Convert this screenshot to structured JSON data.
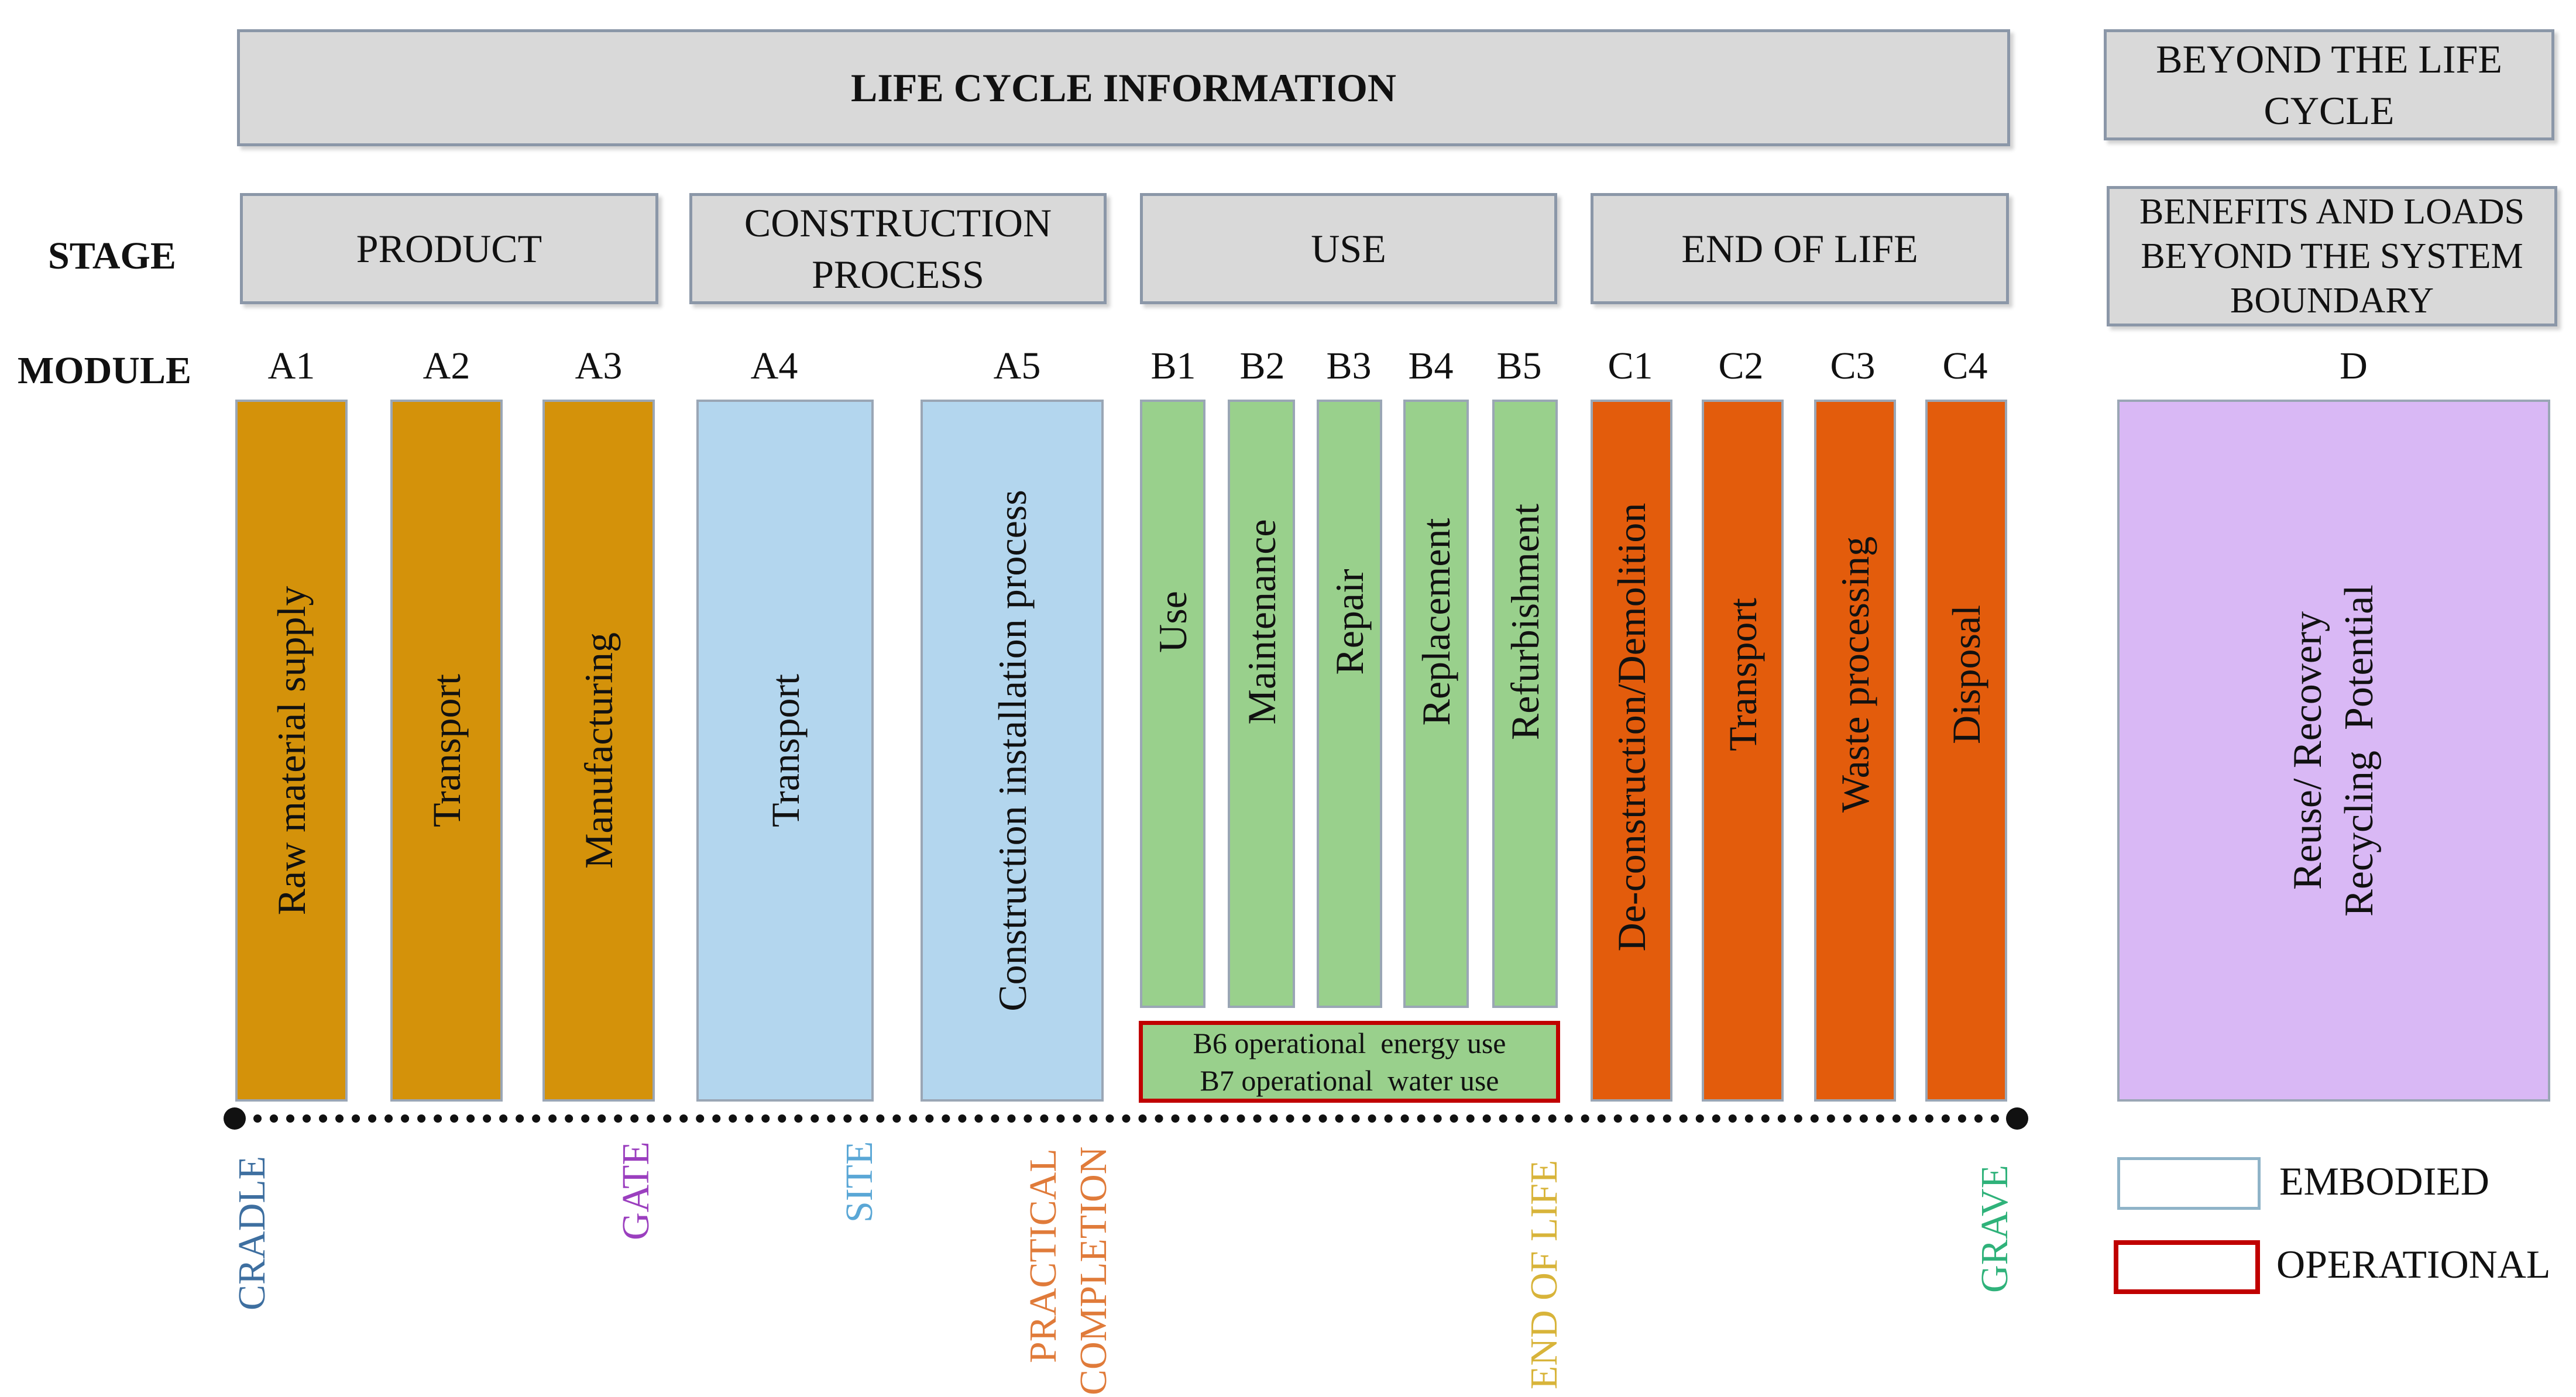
{
  "header": {
    "life_cycle": "LIFE CYCLE INFORMATION",
    "beyond_line1": "BEYOND THE LIFE",
    "beyond_line2": "CYCLE"
  },
  "row_labels": {
    "stage": "STAGE",
    "module": "MODULE"
  },
  "stages": {
    "product": "PRODUCT",
    "construction_line1": "CONSTRUCTION",
    "construction_line2": "PROCESS",
    "use": "USE",
    "end_of_life": "END OF LIFE",
    "benefits_line1": "BENEFITS AND LOADS",
    "benefits_line2": "BEYOND THE SYSTEM",
    "benefits_line3": "BOUNDARY"
  },
  "modules": [
    {
      "code": "A1",
      "name": "Raw material supply",
      "color": "#d4920a"
    },
    {
      "code": "A2",
      "name": "Transport",
      "color": "#d4920a"
    },
    {
      "code": "A3",
      "name": "Manufacturing",
      "color": "#d4920a"
    },
    {
      "code": "A4",
      "name": "Transport",
      "color": "#b3d6ee"
    },
    {
      "code": "A5",
      "name": "Construction installation process",
      "color": "#b3d6ee"
    },
    {
      "code": "B1",
      "name": "Use",
      "color": "#99d08c"
    },
    {
      "code": "B2",
      "name": "Maintenance",
      "color": "#99d08c"
    },
    {
      "code": "B3",
      "name": "Repair",
      "color": "#99d08c"
    },
    {
      "code": "B4",
      "name": "Replacement",
      "color": "#99d08c"
    },
    {
      "code": "B5",
      "name": "Refurbishment",
      "color": "#99d08c"
    },
    {
      "code": "C1",
      "name": "De-construction/Demolition",
      "color": "#e35c0c"
    },
    {
      "code": "C2",
      "name": "Transport",
      "color": "#e35c0c"
    },
    {
      "code": "C3",
      "name": "Waste processing",
      "color": "#e35c0c"
    },
    {
      "code": "C4",
      "name": "Disposal",
      "color": "#e35c0c"
    },
    {
      "code": "D",
      "name_line1": "Reuse/ Recovery",
      "name_line2": "Recycling  Potential",
      "color": "#d9b8f5"
    }
  ],
  "operational": {
    "b6": "B6 operational  energy use",
    "b7": "B7 operational  water use"
  },
  "milestones": {
    "cradle": {
      "label": "CRADLE",
      "color": "#3e6fa0"
    },
    "gate": {
      "label": "GATE",
      "color": "#9b3fbf"
    },
    "site": {
      "label": "SITE",
      "color": "#5aa7d6"
    },
    "practical_line1": "PRACTICAL",
    "practical_line2": "COMPLETION",
    "practical_color": "#e07b3a",
    "end_of_life": {
      "label": "END OF LIFE",
      "color": "#d8b43a"
    },
    "grave": {
      "label": "GRAVE",
      "color": "#2fb27a"
    }
  },
  "legend": {
    "embodied": "EMBODIED",
    "operational": "OPERATIONAL",
    "embodied_color": "#8fb3c8",
    "operational_color": "#c00000"
  }
}
